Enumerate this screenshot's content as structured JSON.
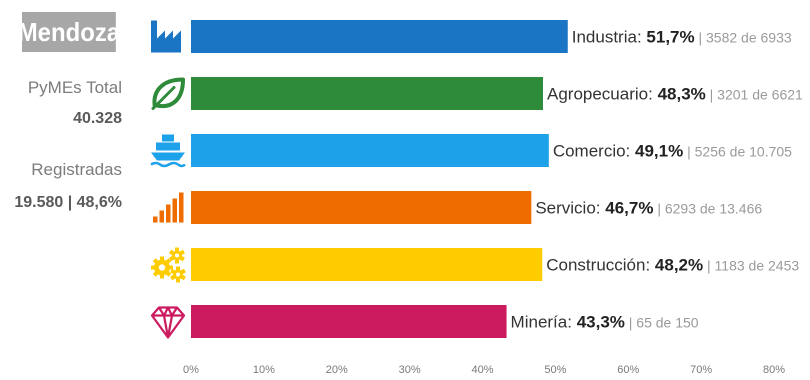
{
  "region": "Mendoza",
  "stats": {
    "total_label": "PyMEs Total",
    "total_value": "40.328",
    "registered_label": "Registradas",
    "registered_value": "19.580 | 48,6%"
  },
  "colors": {
    "axis_text": "#7a7a7a",
    "label_text": "#333333",
    "value_text": "#222222",
    "count_text": "#9a9a9a"
  },
  "chart_data": {
    "type": "bar",
    "orientation": "horizontal",
    "xlim": [
      0,
      80
    ],
    "x_ticks": [
      "0%",
      "10%",
      "20%",
      "30%",
      "40%",
      "50%",
      "60%",
      "70%",
      "80%"
    ],
    "grid": false,
    "categories": [
      "Industria",
      "Agropecuario",
      "Comercio",
      "Servicio",
      "Construcción",
      "Minería"
    ],
    "values": [
      51.7,
      48.3,
      49.1,
      46.7,
      48.2,
      43.3
    ],
    "value_labels": [
      "51,7%",
      "48,3%",
      "49,1%",
      "46,7%",
      "48,2%",
      "43,3%"
    ],
    "counts": [
      "3582 de 6933",
      "3201 de 6621",
      "5256 de 10.705",
      "6293 de 13.466",
      "1183 de 2453",
      "65 de 150"
    ],
    "colors": [
      "#1a75c4",
      "#2e8b3a",
      "#1da1e8",
      "#ef6c00",
      "#ffcc00",
      "#cc1a5e"
    ],
    "icons": [
      "factory-icon",
      "leaf-icon",
      "ship-icon",
      "signal-icon",
      "gears-icon",
      "diamond-icon"
    ]
  }
}
